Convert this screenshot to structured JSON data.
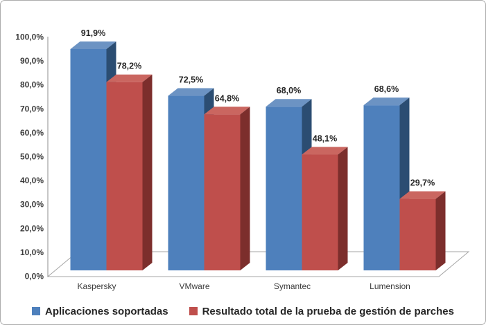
{
  "chart_data": {
    "type": "bar",
    "variant": "3d-clustered-column",
    "title": "",
    "xlabel": "",
    "ylabel": "",
    "categories": [
      "Kaspersky",
      "VMware",
      "Symantec",
      "Lumension"
    ],
    "series": [
      {
        "name": "Aplicaciones soportadas",
        "color": "#4E80BC",
        "color_top": "#6C93C3",
        "color_side": "#2B4D72",
        "values": [
          91.9,
          72.5,
          68.0,
          68.6
        ]
      },
      {
        "name": "Resultado total de la prueba de gestión de parches",
        "color": "#BF4F4C",
        "color_top": "#CA6660",
        "color_side": "#7C2E2C",
        "values": [
          78.2,
          64.8,
          48.1,
          29.7
        ]
      }
    ],
    "value_labels": [
      [
        "91,9%",
        "72,5%",
        "68,0%",
        "68,6%"
      ],
      [
        "78,2%",
        "64,8%",
        "48,1%",
        "29,7%"
      ]
    ],
    "y_ticks": [
      "100,0%",
      "90,0%",
      "80,0%",
      "70,0%",
      "60,0%",
      "50,0%",
      "40,0%",
      "30,0%",
      "20,0%",
      "10,0%",
      "0,0%"
    ],
    "ylim": [
      0,
      100
    ],
    "grid": false,
    "legend_position": "bottom",
    "number_format": "comma-decimal percent",
    "colors": {
      "axis_line": "#8c8c8c",
      "floor_line": "#a6a6a6",
      "frame_border": "#acacac"
    }
  }
}
